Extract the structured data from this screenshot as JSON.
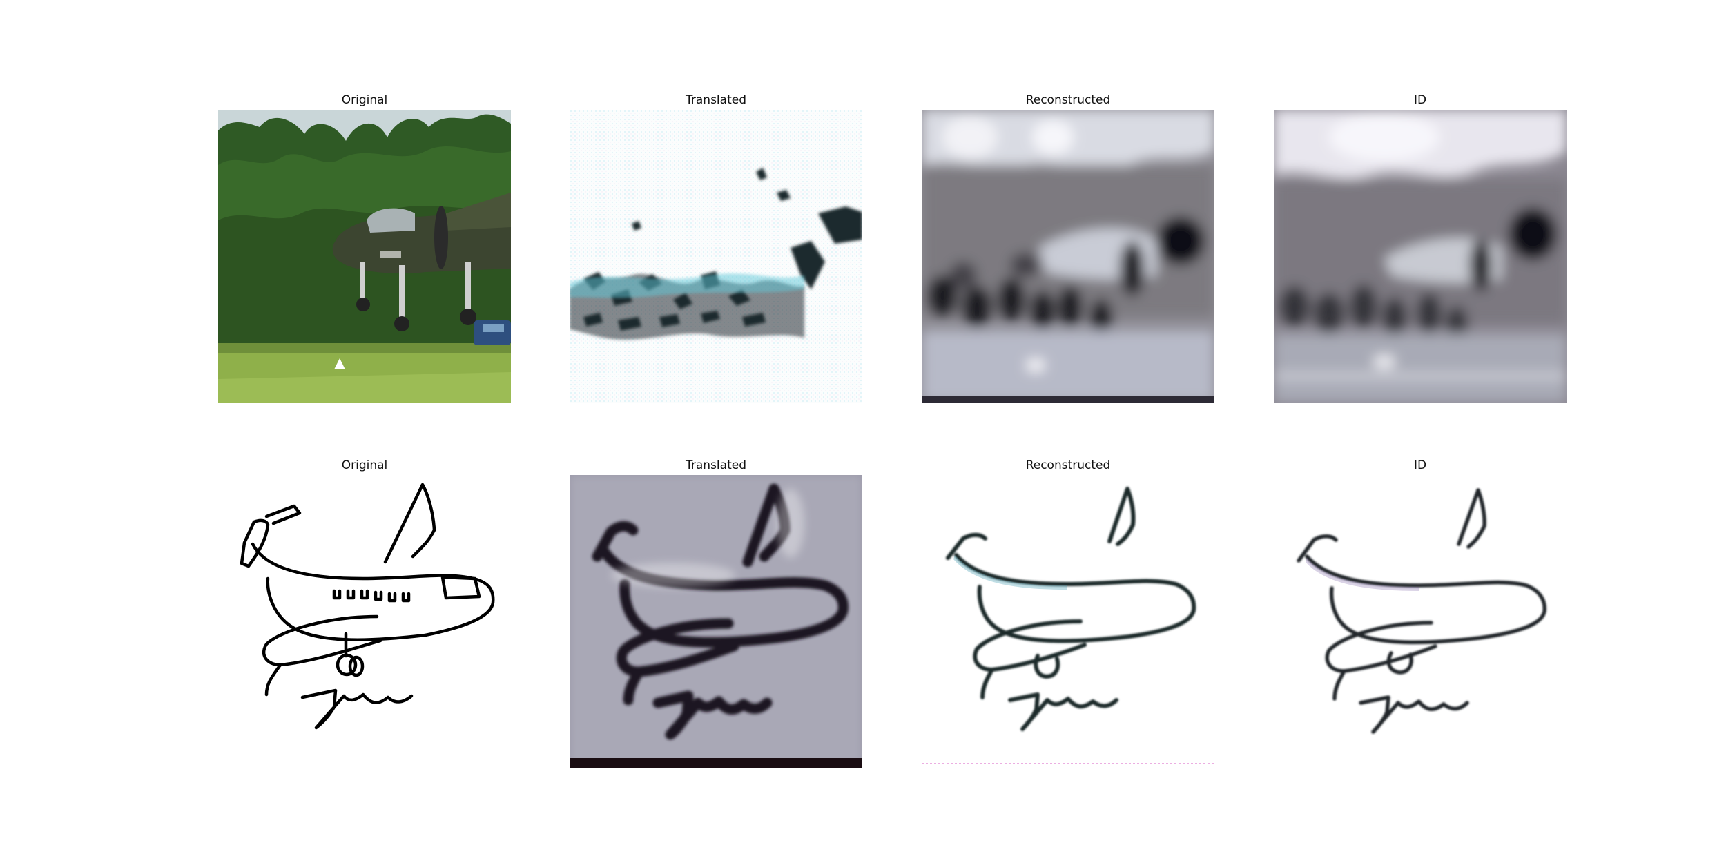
{
  "rows": [
    {
      "panels": [
        {
          "title": "Original"
        },
        {
          "title": "Translated"
        },
        {
          "title": "Reconstructed"
        },
        {
          "title": "ID"
        }
      ]
    },
    {
      "panels": [
        {
          "title": "Original"
        },
        {
          "title": "Translated"
        },
        {
          "title": "Reconstructed"
        },
        {
          "title": "ID"
        }
      ]
    }
  ]
}
